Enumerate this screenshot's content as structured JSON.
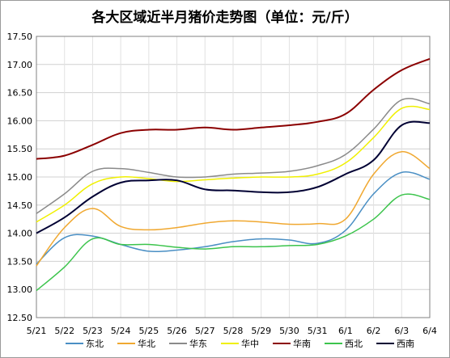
{
  "chart_data": {
    "type": "line",
    "title": "各大区域近半月猪价走势图（单位：元/斤）",
    "xlabel": "",
    "ylabel": "",
    "ylim": [
      12.5,
      17.5
    ],
    "yticks": [
      "12.50",
      "13.00",
      "13.50",
      "14.00",
      "14.50",
      "15.00",
      "15.50",
      "16.00",
      "16.50",
      "17.00",
      "17.50"
    ],
    "categories": [
      "5/21",
      "5/22",
      "5/23",
      "5/24",
      "5/25",
      "5/26",
      "5/27",
      "5/28",
      "5/29",
      "5/30",
      "5/31",
      "6/1",
      "6/2",
      "6/3",
      "6/4"
    ],
    "grid": true,
    "legend_position": "bottom",
    "series": [
      {
        "name": "东北",
        "color": "#4a8fc4",
        "values": [
          13.45,
          13.92,
          13.95,
          13.8,
          13.68,
          13.7,
          13.76,
          13.85,
          13.9,
          13.88,
          13.82,
          14.05,
          14.7,
          15.08,
          14.96
        ]
      },
      {
        "name": "华北",
        "color": "#f0a830",
        "values": [
          13.42,
          14.1,
          14.44,
          14.12,
          14.06,
          14.1,
          14.18,
          14.22,
          14.2,
          14.16,
          14.17,
          14.25,
          15.05,
          15.45,
          15.15
        ]
      },
      {
        "name": "华东",
        "color": "#8a8a8a",
        "values": [
          14.35,
          14.7,
          15.1,
          15.15,
          15.08,
          15.0,
          15.0,
          15.05,
          15.07,
          15.1,
          15.2,
          15.4,
          15.85,
          16.37,
          16.3
        ]
      },
      {
        "name": "华中",
        "color": "#f0f000",
        "values": [
          14.2,
          14.5,
          14.88,
          15.0,
          14.97,
          14.92,
          14.95,
          14.98,
          15.0,
          15.0,
          15.05,
          15.25,
          15.7,
          16.22,
          16.2
        ]
      },
      {
        "name": "华南",
        "color": "#8b0000",
        "values": [
          15.32,
          15.38,
          15.57,
          15.78,
          15.84,
          15.84,
          15.88,
          15.84,
          15.88,
          15.92,
          15.98,
          16.12,
          16.55,
          16.9,
          17.1
        ]
      },
      {
        "name": "西北",
        "color": "#3cc44c",
        "values": [
          12.98,
          13.4,
          13.9,
          13.8,
          13.8,
          13.75,
          13.72,
          13.76,
          13.76,
          13.78,
          13.8,
          13.95,
          14.25,
          14.68,
          14.6
        ]
      },
      {
        "name": "西南",
        "color": "#000033",
        "values": [
          14.0,
          14.28,
          14.65,
          14.9,
          14.94,
          14.94,
          14.78,
          14.76,
          14.73,
          14.73,
          14.82,
          15.05,
          15.3,
          15.92,
          15.96
        ]
      }
    ]
  }
}
